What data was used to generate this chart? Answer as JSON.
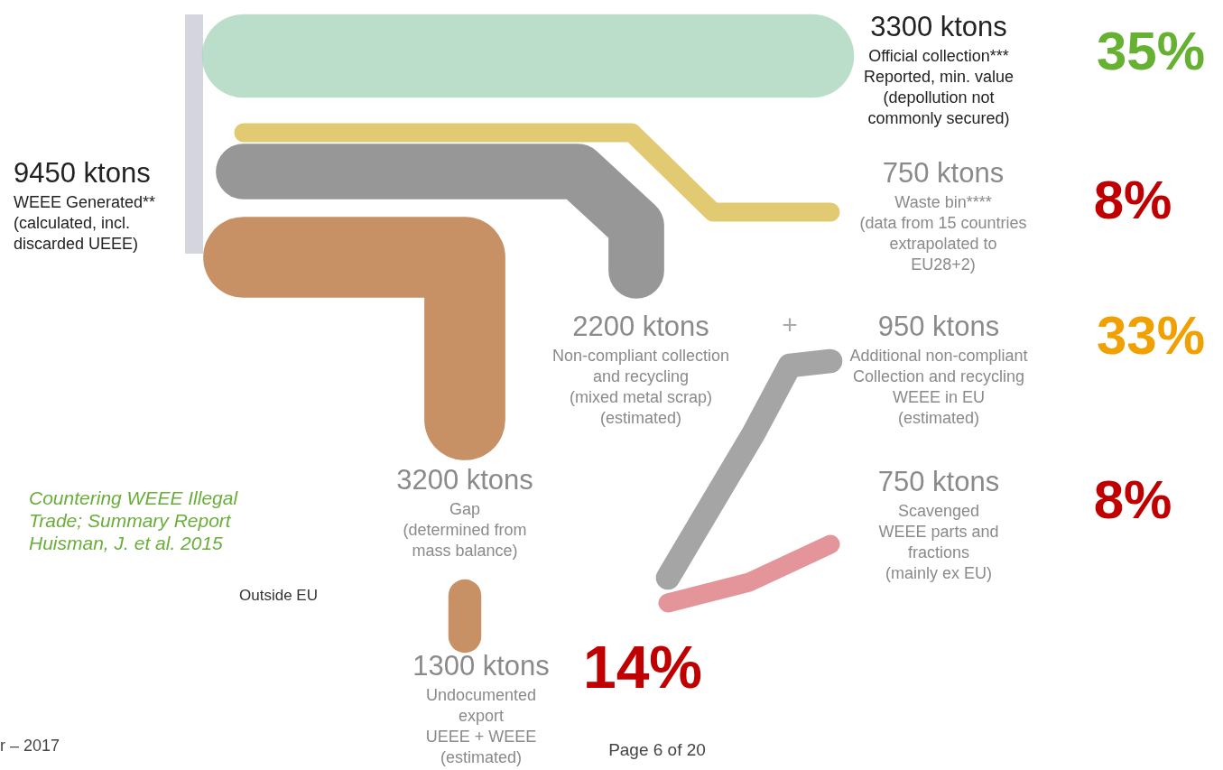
{
  "chart_data": {
    "type": "other",
    "categories": [
      "WEEE Generated**\n(calculated, incl.\ndiscarded UEEE)",
      "Official collection***\nReported, min. value\n(depollution not\ncommonly secured)",
      "Waste bin****\n(data from 15 countries\nextrapolated to\nEU28+2)",
      "Non-compliant collection\nand recycling\n(mixed metal scrap)\n(estimated)",
      "Additional non-compliant\nCollection and recycling\nWEEE in EU\n(estimated)",
      "Gap\n(determined from\nmass balance)",
      "Scavenged\nWEEE parts and\nfractions\n(mainly ex EU)",
      "Undocumented\nexport\nUEEE + WEEE\n(estimated)"
    ],
    "values": [
      9450,
      3300,
      750,
      2200,
      950,
      3200,
      750,
      1300
    ],
    "value_labels": [
      "9450 ktons",
      "3300 ktons",
      "750 ktons",
      "2200 ktons",
      "950 ktons",
      "3200 ktons",
      "750 ktons",
      "1300 ktons"
    ],
    "colors": [
      "#c9cbd6",
      "#a9d6bb",
      "#d9bd4e",
      "#7d7d7d",
      "#8f8f8f",
      "#b9743f",
      "#dc7a80",
      "#b9743f"
    ],
    "annotations": [
      "35%",
      "8%",
      "33%",
      "8%",
      "14%",
      "+",
      "Outside EU",
      "Countering WEEE Illegal\nTrade; Summary Report\nHuisman, J. et al. 2015",
      "r – 2017",
      "Page 6 of 20"
    ]
  }
}
